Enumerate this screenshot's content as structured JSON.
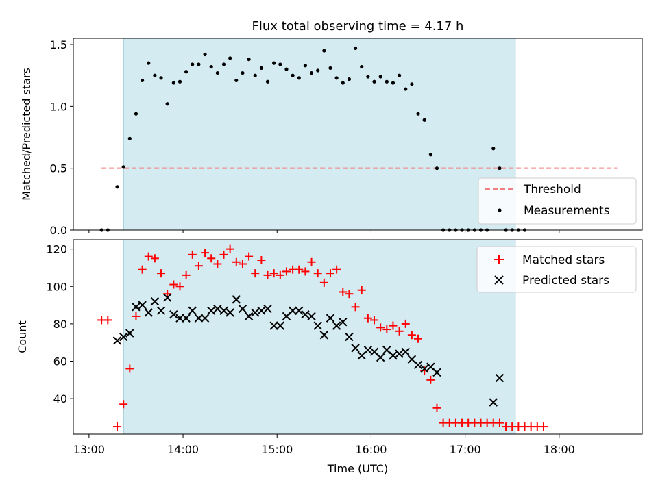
{
  "chart_data": [
    {
      "type": "scatter",
      "title": "Flux total observing time = 4.17 h",
      "xlabel": "",
      "ylabel": "Matched/Predicted stars",
      "xlim": [
        "12:50",
        "18:53"
      ],
      "ylim": [
        0,
        1.55
      ],
      "yticks": [
        {
          "value": 0,
          "label": "0.0"
        },
        {
          "value": 0.5,
          "label": "0.5"
        },
        {
          "value": 1.0,
          "label": "1.0"
        },
        {
          "value": 1.5,
          "label": "1.5"
        }
      ],
      "highlight_span": [
        "13:22",
        "17:32"
      ],
      "threshold": {
        "name": "Threshold",
        "value": 0.5,
        "x_start": "13:08",
        "x_end": "18:37",
        "color": "#f08080",
        "style": "dashed"
      },
      "legend": {
        "placement": "bottom-right",
        "entries": [
          "Threshold",
          "Measurements"
        ]
      },
      "series": [
        {
          "name": "Measurements",
          "color": "#000000",
          "marker": "dot",
          "points": [
            [
              "13:08",
              0
            ],
            [
              "13:12",
              0
            ],
            [
              "13:18",
              0.35
            ],
            [
              "13:22",
              0.51
            ],
            [
              "13:26",
              0.74
            ],
            [
              "13:30",
              0.94
            ],
            [
              "13:34",
              1.21
            ],
            [
              "13:38",
              1.35
            ],
            [
              "13:42",
              1.25
            ],
            [
              "13:46",
              1.23
            ],
            [
              "13:50",
              1.02
            ],
            [
              "13:54",
              1.19
            ],
            [
              "13:58",
              1.2
            ],
            [
              "14:02",
              1.28
            ],
            [
              "14:06",
              1.34
            ],
            [
              "14:10",
              1.34
            ],
            [
              "14:14",
              1.42
            ],
            [
              "14:18",
              1.32
            ],
            [
              "14:22",
              1.27
            ],
            [
              "14:26",
              1.34
            ],
            [
              "14:30",
              1.39
            ],
            [
              "14:34",
              1.21
            ],
            [
              "14:38",
              1.27
            ],
            [
              "14:42",
              1.38
            ],
            [
              "14:46",
              1.25
            ],
            [
              "14:50",
              1.31
            ],
            [
              "14:54",
              1.2
            ],
            [
              "14:58",
              1.35
            ],
            [
              "15:02",
              1.34
            ],
            [
              "15:06",
              1.3
            ],
            [
              "15:10",
              1.25
            ],
            [
              "15:14",
              1.23
            ],
            [
              "15:18",
              1.33
            ],
            [
              "15:22",
              1.27
            ],
            [
              "15:26",
              1.29
            ],
            [
              "15:30",
              1.45
            ],
            [
              "15:34",
              1.31
            ],
            [
              "15:38",
              1.23
            ],
            [
              "15:42",
              1.19
            ],
            [
              "15:46",
              1.22
            ],
            [
              "15:50",
              1.47
            ],
            [
              "15:54",
              1.32
            ],
            [
              "15:58",
              1.24
            ],
            [
              "16:02",
              1.2
            ],
            [
              "16:06",
              1.24
            ],
            [
              "16:10",
              1.2
            ],
            [
              "16:14",
              1.19
            ],
            [
              "16:18",
              1.25
            ],
            [
              "16:22",
              1.14
            ],
            [
              "16:26",
              1.18
            ],
            [
              "16:30",
              0.94
            ],
            [
              "16:34",
              0.89
            ],
            [
              "16:38",
              0.61
            ],
            [
              "16:42",
              0.5
            ],
            [
              "16:46",
              0
            ],
            [
              "16:50",
              0
            ],
            [
              "16:54",
              0
            ],
            [
              "16:58",
              0
            ],
            [
              "17:02",
              0
            ],
            [
              "17:06",
              0
            ],
            [
              "17:10",
              0
            ],
            [
              "17:14",
              0
            ],
            [
              "17:18",
              0.66
            ],
            [
              "17:22",
              0.5
            ],
            [
              "17:26",
              0
            ],
            [
              "17:30",
              0
            ],
            [
              "17:34",
              0
            ],
            [
              "17:38",
              0
            ]
          ]
        }
      ]
    },
    {
      "type": "scatter",
      "title": "",
      "xlabel": "Time (UTC)",
      "ylabel": "Count",
      "xlim": [
        "12:50",
        "18:53"
      ],
      "ylim": [
        21,
        125
      ],
      "xticks": [
        "13:00",
        "14:00",
        "15:00",
        "16:00",
        "17:00",
        "18:00"
      ],
      "yticks": [
        40,
        60,
        80,
        100,
        120
      ],
      "highlight_span": [
        "13:22",
        "17:32"
      ],
      "legend": {
        "placement": "top-right",
        "entries": [
          "Matched stars",
          "Predicted stars"
        ]
      },
      "series": [
        {
          "name": "Matched stars",
          "color": "#ff0000",
          "marker": "plus",
          "points": [
            [
              "13:08",
              82
            ],
            [
              "13:12",
              82
            ],
            [
              "13:18",
              25
            ],
            [
              "13:22",
              37
            ],
            [
              "13:26",
              56
            ],
            [
              "13:30",
              84
            ],
            [
              "13:34",
              109
            ],
            [
              "13:38",
              116
            ],
            [
              "13:42",
              115
            ],
            [
              "13:46",
              107
            ],
            [
              "13:50",
              96
            ],
            [
              "13:54",
              101
            ],
            [
              "13:58",
              100
            ],
            [
              "14:02",
              106
            ],
            [
              "14:06",
              117
            ],
            [
              "14:10",
              111
            ],
            [
              "14:14",
              118
            ],
            [
              "14:18",
              115
            ],
            [
              "14:22",
              112
            ],
            [
              "14:26",
              117
            ],
            [
              "14:30",
              120
            ],
            [
              "14:34",
              113
            ],
            [
              "14:38",
              112
            ],
            [
              "14:42",
              116
            ],
            [
              "14:46",
              107
            ],
            [
              "14:50",
              114
            ],
            [
              "14:54",
              106
            ],
            [
              "14:58",
              107
            ],
            [
              "15:02",
              106
            ],
            [
              "15:06",
              108
            ],
            [
              "15:10",
              109
            ],
            [
              "15:14",
              109
            ],
            [
              "15:18",
              108
            ],
            [
              "15:22",
              113
            ],
            [
              "15:26",
              107
            ],
            [
              "15:30",
              102
            ],
            [
              "15:34",
              107
            ],
            [
              "15:38",
              109
            ],
            [
              "15:42",
              97
            ],
            [
              "15:46",
              96
            ],
            [
              "15:50",
              89
            ],
            [
              "15:54",
              98
            ],
            [
              "15:58",
              83
            ],
            [
              "16:02",
              82
            ],
            [
              "16:06",
              78
            ],
            [
              "16:10",
              77
            ],
            [
              "16:14",
              79
            ],
            [
              "16:18",
              76
            ],
            [
              "16:22",
              80
            ],
            [
              "16:26",
              74
            ],
            [
              "16:30",
              72
            ],
            [
              "16:34",
              55
            ],
            [
              "16:38",
              50
            ],
            [
              "16:42",
              35
            ],
            [
              "16:46",
              27
            ],
            [
              "16:50",
              27
            ],
            [
              "16:54",
              27
            ],
            [
              "16:58",
              27
            ],
            [
              "17:02",
              27
            ],
            [
              "17:06",
              27
            ],
            [
              "17:10",
              27
            ],
            [
              "17:14",
              27
            ],
            [
              "17:18",
              27
            ],
            [
              "17:22",
              27
            ],
            [
              "17:26",
              25
            ],
            [
              "17:30",
              25
            ],
            [
              "17:34",
              25
            ],
            [
              "17:38",
              25
            ],
            [
              "17:42",
              25
            ],
            [
              "17:46",
              25
            ],
            [
              "17:50",
              25
            ]
          ]
        },
        {
          "name": "Predicted stars",
          "color": "#000000",
          "marker": "x",
          "points": [
            [
              "13:18",
              71
            ],
            [
              "13:22",
              73
            ],
            [
              "13:26",
              75
            ],
            [
              "13:30",
              89
            ],
            [
              "13:34",
              90
            ],
            [
              "13:38",
              86
            ],
            [
              "13:42",
              92
            ],
            [
              "13:46",
              87
            ],
            [
              "13:50",
              94
            ],
            [
              "13:54",
              85
            ],
            [
              "13:58",
              83
            ],
            [
              "14:02",
              83
            ],
            [
              "14:06",
              87
            ],
            [
              "14:10",
              83
            ],
            [
              "14:14",
              83
            ],
            [
              "14:18",
              87
            ],
            [
              "14:22",
              88
            ],
            [
              "14:26",
              87
            ],
            [
              "14:30",
              86
            ],
            [
              "14:34",
              93
            ],
            [
              "14:38",
              88
            ],
            [
              "14:42",
              84
            ],
            [
              "14:46",
              86
            ],
            [
              "14:50",
              87
            ],
            [
              "14:54",
              88
            ],
            [
              "14:58",
              79
            ],
            [
              "15:02",
              79
            ],
            [
              "15:06",
              84
            ],
            [
              "15:10",
              87
            ],
            [
              "15:14",
              87
            ],
            [
              "15:18",
              85
            ],
            [
              "15:22",
              84
            ],
            [
              "15:26",
              79
            ],
            [
              "15:30",
              74
            ],
            [
              "15:34",
              83
            ],
            [
              "15:38",
              79
            ],
            [
              "15:42",
              81
            ],
            [
              "15:46",
              73
            ],
            [
              "15:50",
              67
            ],
            [
              "15:54",
              63
            ],
            [
              "15:58",
              66
            ],
            [
              "16:02",
              65
            ],
            [
              "16:06",
              62
            ],
            [
              "16:10",
              66
            ],
            [
              "16:14",
              63
            ],
            [
              "16:18",
              64
            ],
            [
              "16:22",
              65
            ],
            [
              "16:26",
              61
            ],
            [
              "16:30",
              58
            ],
            [
              "16:34",
              56
            ],
            [
              "16:38",
              57
            ],
            [
              "16:42",
              54
            ],
            [
              "17:18",
              38
            ],
            [
              "17:22",
              51
            ]
          ]
        }
      ]
    }
  ],
  "colors": {
    "span_fill": "#add8e6",
    "span_stroke": "#98c6d4"
  }
}
